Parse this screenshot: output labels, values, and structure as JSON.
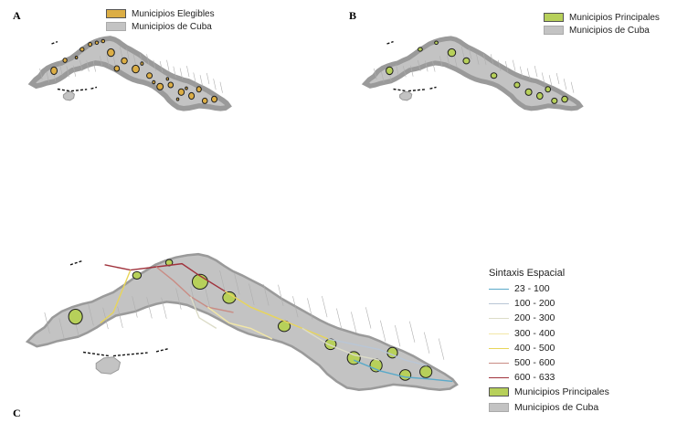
{
  "panels": {
    "a": {
      "letter": "A",
      "legend": [
        {
          "label": "Municipios Elegibles",
          "color": "#dcae45"
        },
        {
          "label": "Municipios de Cuba",
          "color": "#c3c3c3"
        }
      ]
    },
    "b": {
      "letter": "B",
      "legend": [
        {
          "label": "Municipios Principales",
          "color": "#b7d05a"
        },
        {
          "label": "Municipios de Cuba",
          "color": "#c3c3c3"
        }
      ]
    },
    "c": {
      "letter": "C",
      "legend_title": "Sintaxis Espacial",
      "classes": [
        {
          "label": "23 - 100",
          "color": "#5aa9c9"
        },
        {
          "label": "100 - 200",
          "color": "#b9c6d6"
        },
        {
          "label": "200 - 300",
          "color": "#dcdcc8"
        },
        {
          "label": "300 - 400",
          "color": "#f2e7a6"
        },
        {
          "label": "400 - 500",
          "color": "#e8d55a"
        },
        {
          "label": "500 - 600",
          "color": "#c98c84"
        },
        {
          "label": "600 - 633",
          "color": "#a0323c"
        }
      ],
      "areas": [
        {
          "label": "Municipios Principales",
          "color": "#b7d05a"
        },
        {
          "label": "Municipios de Cuba",
          "color": "#c3c3c3"
        }
      ]
    }
  },
  "colors": {
    "land": "#c3c3c3",
    "outline": "#9a9a9a",
    "elegible": "#dcae45",
    "principal": "#b7d05a",
    "border": "#1e1e1e"
  }
}
